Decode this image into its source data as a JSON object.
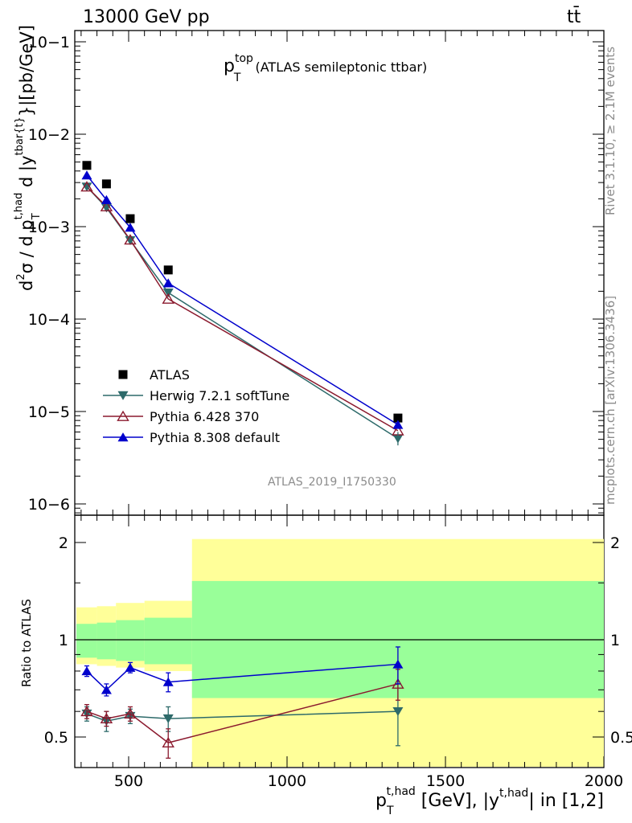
{
  "header": {
    "left": "13000 GeV pp",
    "right": "tt̄"
  },
  "side_text": {
    "rivet": "Rivet 3.1.10, ≥ 2.1M events",
    "mcplots": "mcplots.cern.ch [arXiv:1306.3436]"
  },
  "analysis_id": "ATLAS_2019_I1750330",
  "title": {
    "main": "p",
    "sup": "top",
    "sub": "T",
    "rest": "(ATLAS semileptonic ttbar)"
  },
  "ylabel_text": "d²σ / d p_T^{t,had} d |y^{tbar{t}}|[pb/GeV]",
  "xlabel_text": "p_T^{t,had} [GeV], |y^{t,had}| in [1,2]",
  "ratio_ylabel": "Ratio to ATLAS",
  "yticks_main": [
    "10−6",
    "10−5",
    "10−4",
    "10−3",
    "10−2",
    "10−1"
  ],
  "yticks_ratio": [
    "0.5",
    "1",
    "2"
  ],
  "xticks": [
    "500",
    "1000",
    "1500",
    "2000"
  ],
  "colors": {
    "atlas": "#000000",
    "herwig": "#2d6a6a",
    "pythia6": "#8b1a2e",
    "pythia8": "#0000cc",
    "band_inner": "#99ff99",
    "band_outer": "#ffff99"
  },
  "chart_data": {
    "type": "scatter",
    "xlabel": "p_T^{t,had} [GeV], |y^{t,had}| in [1,2]",
    "ylabel": "d²σ / d p_T^{t,had} d |y^{tbar{t}}|[pb/GeV]",
    "x_range": [
      330,
      2000
    ],
    "y_range": [
      1e-06,
      0.13
    ],
    "y_scale": "log",
    "ratio_range": [
      0.35,
      2.5
    ],
    "legend_position": "bottom-left",
    "bins": [
      [
        335,
        400
      ],
      [
        400,
        460
      ],
      [
        460,
        550
      ],
      [
        550,
        700
      ],
      [
        700,
        2000
      ]
    ],
    "x": [
      368,
      430,
      505,
      625,
      1350
    ],
    "series": [
      {
        "name": "ATLAS",
        "marker": "square",
        "values": [
          0.0046,
          0.0029,
          0.00122,
          0.00034,
          8.5e-06
        ]
      },
      {
        "name": "Herwig 7.2.1 softTune",
        "marker": "triangle-down",
        "values": [
          0.0027,
          0.0016,
          0.00071,
          0.000193,
          5.1e-06
        ],
        "ratio": [
          0.59,
          0.56,
          0.58,
          0.57,
          0.6
        ]
      },
      {
        "name": "Pythia 6.428 370",
        "marker": "triangle-up-open",
        "values": [
          0.0027,
          0.00165,
          0.00072,
          0.000165,
          6.2e-06
        ],
        "ratio": [
          0.6,
          0.57,
          0.59,
          0.48,
          0.73
        ]
      },
      {
        "name": "Pythia 8.308 default",
        "marker": "triangle-up",
        "values": [
          0.0036,
          0.00195,
          0.00098,
          0.000245,
          7.2e-06
        ],
        "ratio": [
          0.8,
          0.7,
          0.82,
          0.74,
          0.84
        ]
      }
    ],
    "ratio_bands": {
      "inner": [
        [
          0.88,
          1.12
        ],
        [
          0.87,
          1.13
        ],
        [
          0.86,
          1.15
        ],
        [
          0.84,
          1.17
        ],
        [
          0.66,
          1.52
        ]
      ],
      "outer": [
        [
          0.84,
          1.26
        ],
        [
          0.83,
          1.27
        ],
        [
          0.82,
          1.3
        ],
        [
          0.8,
          1.32
        ],
        [
          0.38,
          2.05
        ]
      ]
    }
  }
}
